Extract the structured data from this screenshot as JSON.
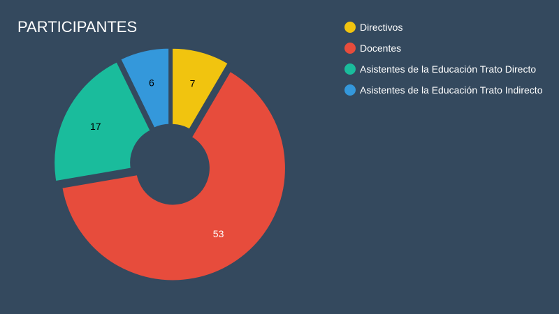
{
  "chart_data": {
    "type": "pie",
    "variant": "doughnut",
    "title": "PARTICIPANTES",
    "legend_position": "top-right",
    "slices": [
      {
        "label": "Directivos",
        "value": 7,
        "color": "#f1c40f",
        "label_color": "#000000"
      },
      {
        "label": "Docentes",
        "value": 53,
        "color": "#e74c3c",
        "label_color": "#ffffff"
      },
      {
        "label": "Asistentes de la Educación Trato Directo",
        "value": 17,
        "color": "#1abc9c",
        "label_color": "#000000"
      },
      {
        "label": "Asistentes de la Educación Trato Indirecto",
        "value": 6,
        "color": "#3498db",
        "label_color": "#000000"
      }
    ]
  },
  "colors": {
    "background": "#34495e",
    "title": "#ffffff",
    "legend_text": "#ffffff"
  }
}
